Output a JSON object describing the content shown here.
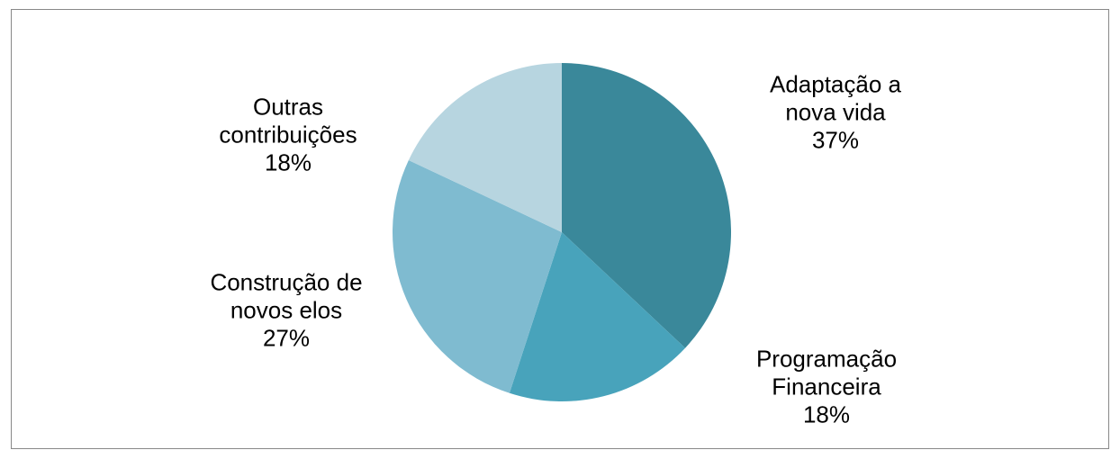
{
  "chart_data": {
    "type": "pie",
    "categories": [
      "Adaptação a nova vida",
      "Programação Financeira",
      "Construção de novos elos",
      "Outras contribuições"
    ],
    "values": [
      37,
      18,
      27,
      18
    ],
    "value_labels": [
      "37%",
      "18%",
      "27%",
      "18%"
    ],
    "colors": [
      "#3a889a",
      "#48a3bb",
      "#7fbbd0",
      "#b7d5e0"
    ]
  }
}
